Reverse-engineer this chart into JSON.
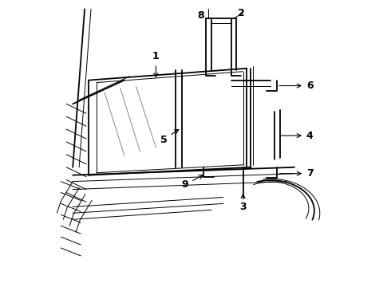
{
  "bg_color": "#ffffff",
  "line_color": "#000000",
  "lw_main": 1.3,
  "lw_thin": 0.7,
  "lw_label": 0.8
}
